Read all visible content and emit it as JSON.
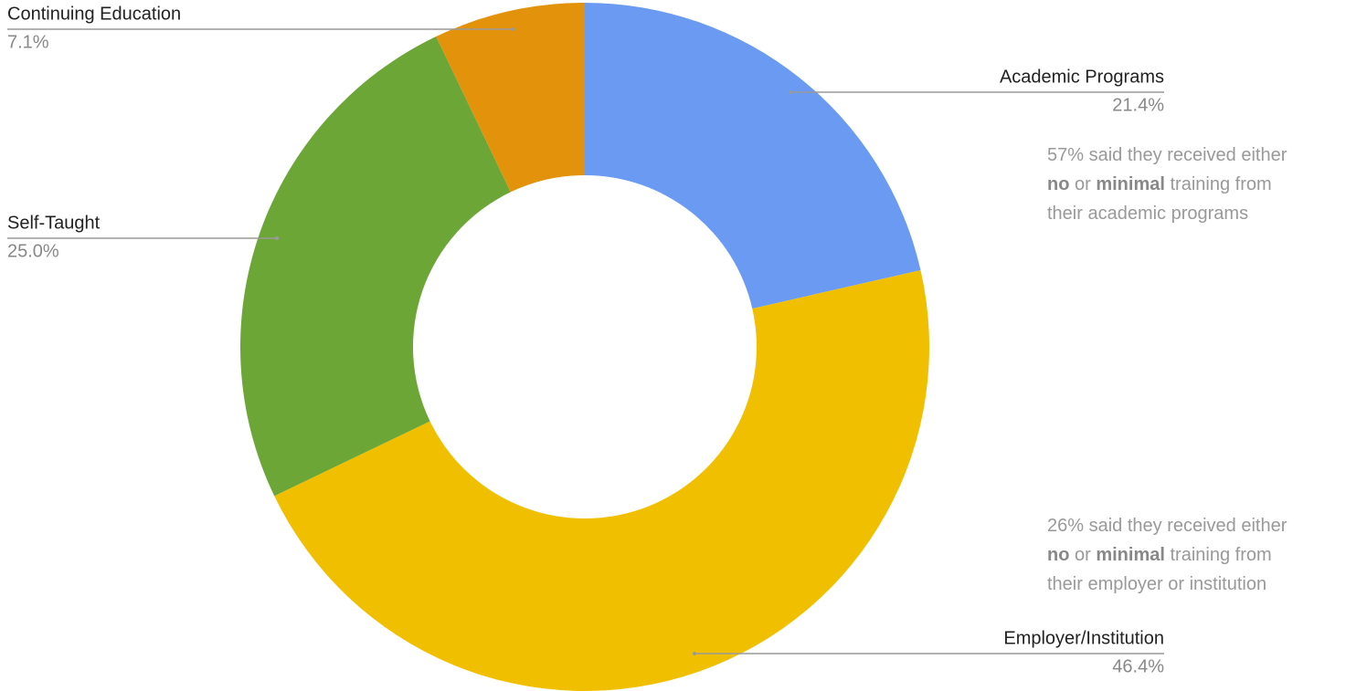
{
  "chart_data": {
    "type": "pie",
    "donut": true,
    "categories": [
      "Academic Programs",
      "Employer/Institution",
      "Self-Taught",
      "Continuing Education"
    ],
    "values": [
      21.4,
      46.4,
      25.0,
      7.1
    ],
    "value_labels": [
      "21.4%",
      "46.4%",
      "25.0%",
      "7.1%"
    ],
    "colors": [
      "#6a9af1",
      "#f0c000",
      "#6ca636",
      "#e3920c"
    ],
    "annotations": [
      [
        [
          {
            "text": "57% said they received either"
          }
        ],
        [
          {
            "text": "no",
            "bold": true
          },
          {
            "text": " or "
          },
          {
            "text": "minimal",
            "bold": true
          },
          {
            "text": " training from"
          }
        ],
        [
          {
            "text": "their academic programs"
          }
        ]
      ],
      [
        [
          {
            "text": "26% said they received either"
          }
        ],
        [
          {
            "text": "no",
            "bold": true
          },
          {
            "text": " or "
          },
          {
            "text": "minimal",
            "bold": true
          },
          {
            "text": " training from"
          }
        ],
        [
          {
            "text": "their employer or institution"
          }
        ]
      ]
    ]
  }
}
